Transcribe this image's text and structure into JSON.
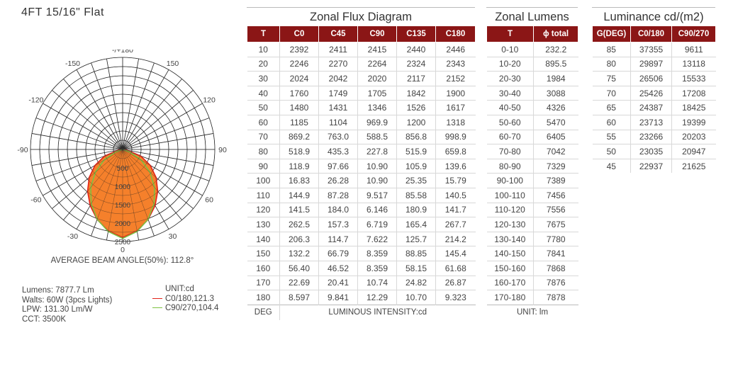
{
  "product_title": "4FT 15/16\" Flat",
  "beam_angle_text": "AVERAGE BEAM ANGLE(50%): 112.8°",
  "stats": {
    "lumens": "Lumens: 7877.7 Lm",
    "watts": "Walts: 60W (3pcs Lights)",
    "lpw": "LPW: 131.30 Lm/W",
    "cct": "CCT: 3500K"
  },
  "legend": {
    "unit": "UNIT:cd",
    "c0": "C0/180,121.3",
    "c90": "C90/270,104.4",
    "c0_color": "#e2231a",
    "c90_color": "#7dc242",
    "fill_color": "#f47920"
  },
  "chart_data": {
    "type": "polar",
    "angle_labels": [
      "-/+180",
      "150",
      "-150",
      "120",
      "-120",
      "90",
      "-90",
      "60",
      "-60",
      "30",
      "-30",
      "0"
    ],
    "radial_labels": [
      "500",
      "1000",
      "1500",
      "2000",
      "2500"
    ],
    "r_max": 2500,
    "angles_deg": [
      0,
      10,
      20,
      30,
      40,
      50,
      60,
      70,
      80,
      90
    ],
    "series": [
      {
        "name": "C0/180",
        "values": [
          2392,
          2246,
          2024,
          1760,
          1480,
          1185,
          869.2,
          518.9,
          118.9,
          16.83
        ]
      },
      {
        "name": "C90/270",
        "values": [
          2415,
          2264,
          2020,
          1705,
          1346,
          969.9,
          588.5,
          227.8,
          10.9,
          10.9
        ]
      }
    ]
  },
  "zonal_flux": {
    "title": "Zonal Flux Diagram",
    "headers": [
      "T",
      "C0",
      "C45",
      "C90",
      "C135",
      "C180"
    ],
    "rows": [
      [
        "10",
        "2392",
        "2411",
        "2415",
        "2440",
        "2446"
      ],
      [
        "20",
        "2246",
        "2270",
        "2264",
        "2324",
        "2343"
      ],
      [
        "30",
        "2024",
        "2042",
        "2020",
        "2117",
        "2152"
      ],
      [
        "40",
        "1760",
        "1749",
        "1705",
        "1842",
        "1900"
      ],
      [
        "50",
        "1480",
        "1431",
        "1346",
        "1526",
        "1617"
      ],
      [
        "60",
        "1185",
        "1104",
        "969.9",
        "1200",
        "1318"
      ],
      [
        "70",
        "869.2",
        "763.0",
        "588.5",
        "856.8",
        "998.9"
      ],
      [
        "80",
        "518.9",
        "435.3",
        "227.8",
        "515.9",
        "659.8"
      ],
      [
        "90",
        "118.9",
        "97.66",
        "10.90",
        "105.9",
        "139.6"
      ],
      [
        "100",
        "16.83",
        "26.28",
        "10.90",
        "25.35",
        "15.79"
      ],
      [
        "110",
        "144.9",
        "87.28",
        "9.517",
        "85.58",
        "140.5"
      ],
      [
        "120",
        "141.5",
        "184.0",
        "6.146",
        "180.9",
        "141.7"
      ],
      [
        "130",
        "262.5",
        "157.3",
        "6.719",
        "165.4",
        "267.7"
      ],
      [
        "140",
        "206.3",
        "114.7",
        "7.622",
        "125.7",
        "214.2"
      ],
      [
        "150",
        "132.2",
        "66.79",
        "8.359",
        "88.85",
        "145.4"
      ],
      [
        "160",
        "56.40",
        "46.52",
        "8.359",
        "58.15",
        "61.68"
      ],
      [
        "170",
        "22.69",
        "20.41",
        "10.74",
        "24.82",
        "26.87"
      ],
      [
        "180",
        "8.597",
        "9.841",
        "12.29",
        "10.70",
        "9.323"
      ]
    ],
    "footer_left": "DEG",
    "footer_right": "LUMINOUS INTENSITY:cd"
  },
  "zonal_lumens": {
    "title": "Zonal Lumens",
    "headers": [
      "T",
      "ϕ total"
    ],
    "rows": [
      [
        "0-10",
        "232.2"
      ],
      [
        "10-20",
        "895.5"
      ],
      [
        "20-30",
        "1984"
      ],
      [
        "30-40",
        "3088"
      ],
      [
        "40-50",
        "4326"
      ],
      [
        "50-60",
        "5470"
      ],
      [
        "60-70",
        "6405"
      ],
      [
        "70-80",
        "7042"
      ],
      [
        "80-90",
        "7329"
      ],
      [
        "90-100",
        "7389"
      ],
      [
        "100-110",
        "7456"
      ],
      [
        "110-120",
        "7556"
      ],
      [
        "120-130",
        "7675"
      ],
      [
        "130-140",
        "7780"
      ],
      [
        "140-150",
        "7841"
      ],
      [
        "150-160",
        "7868"
      ],
      [
        "160-170",
        "7876"
      ],
      [
        "170-180",
        "7878"
      ]
    ],
    "footer": "UNIT: lm"
  },
  "luminance": {
    "title": "Luminance cd/(m2)",
    "headers": [
      "G(DEG)",
      "C0/180",
      "C90/270"
    ],
    "rows": [
      [
        "85",
        "37355",
        "9611"
      ],
      [
        "80",
        "29897",
        "13118"
      ],
      [
        "75",
        "26506",
        "15533"
      ],
      [
        "70",
        "25426",
        "17208"
      ],
      [
        "65",
        "24387",
        "18425"
      ],
      [
        "60",
        "23713",
        "19399"
      ],
      [
        "55",
        "23266",
        "20203"
      ],
      [
        "50",
        "23035",
        "20947"
      ],
      [
        "45",
        "22937",
        "21625"
      ]
    ]
  }
}
